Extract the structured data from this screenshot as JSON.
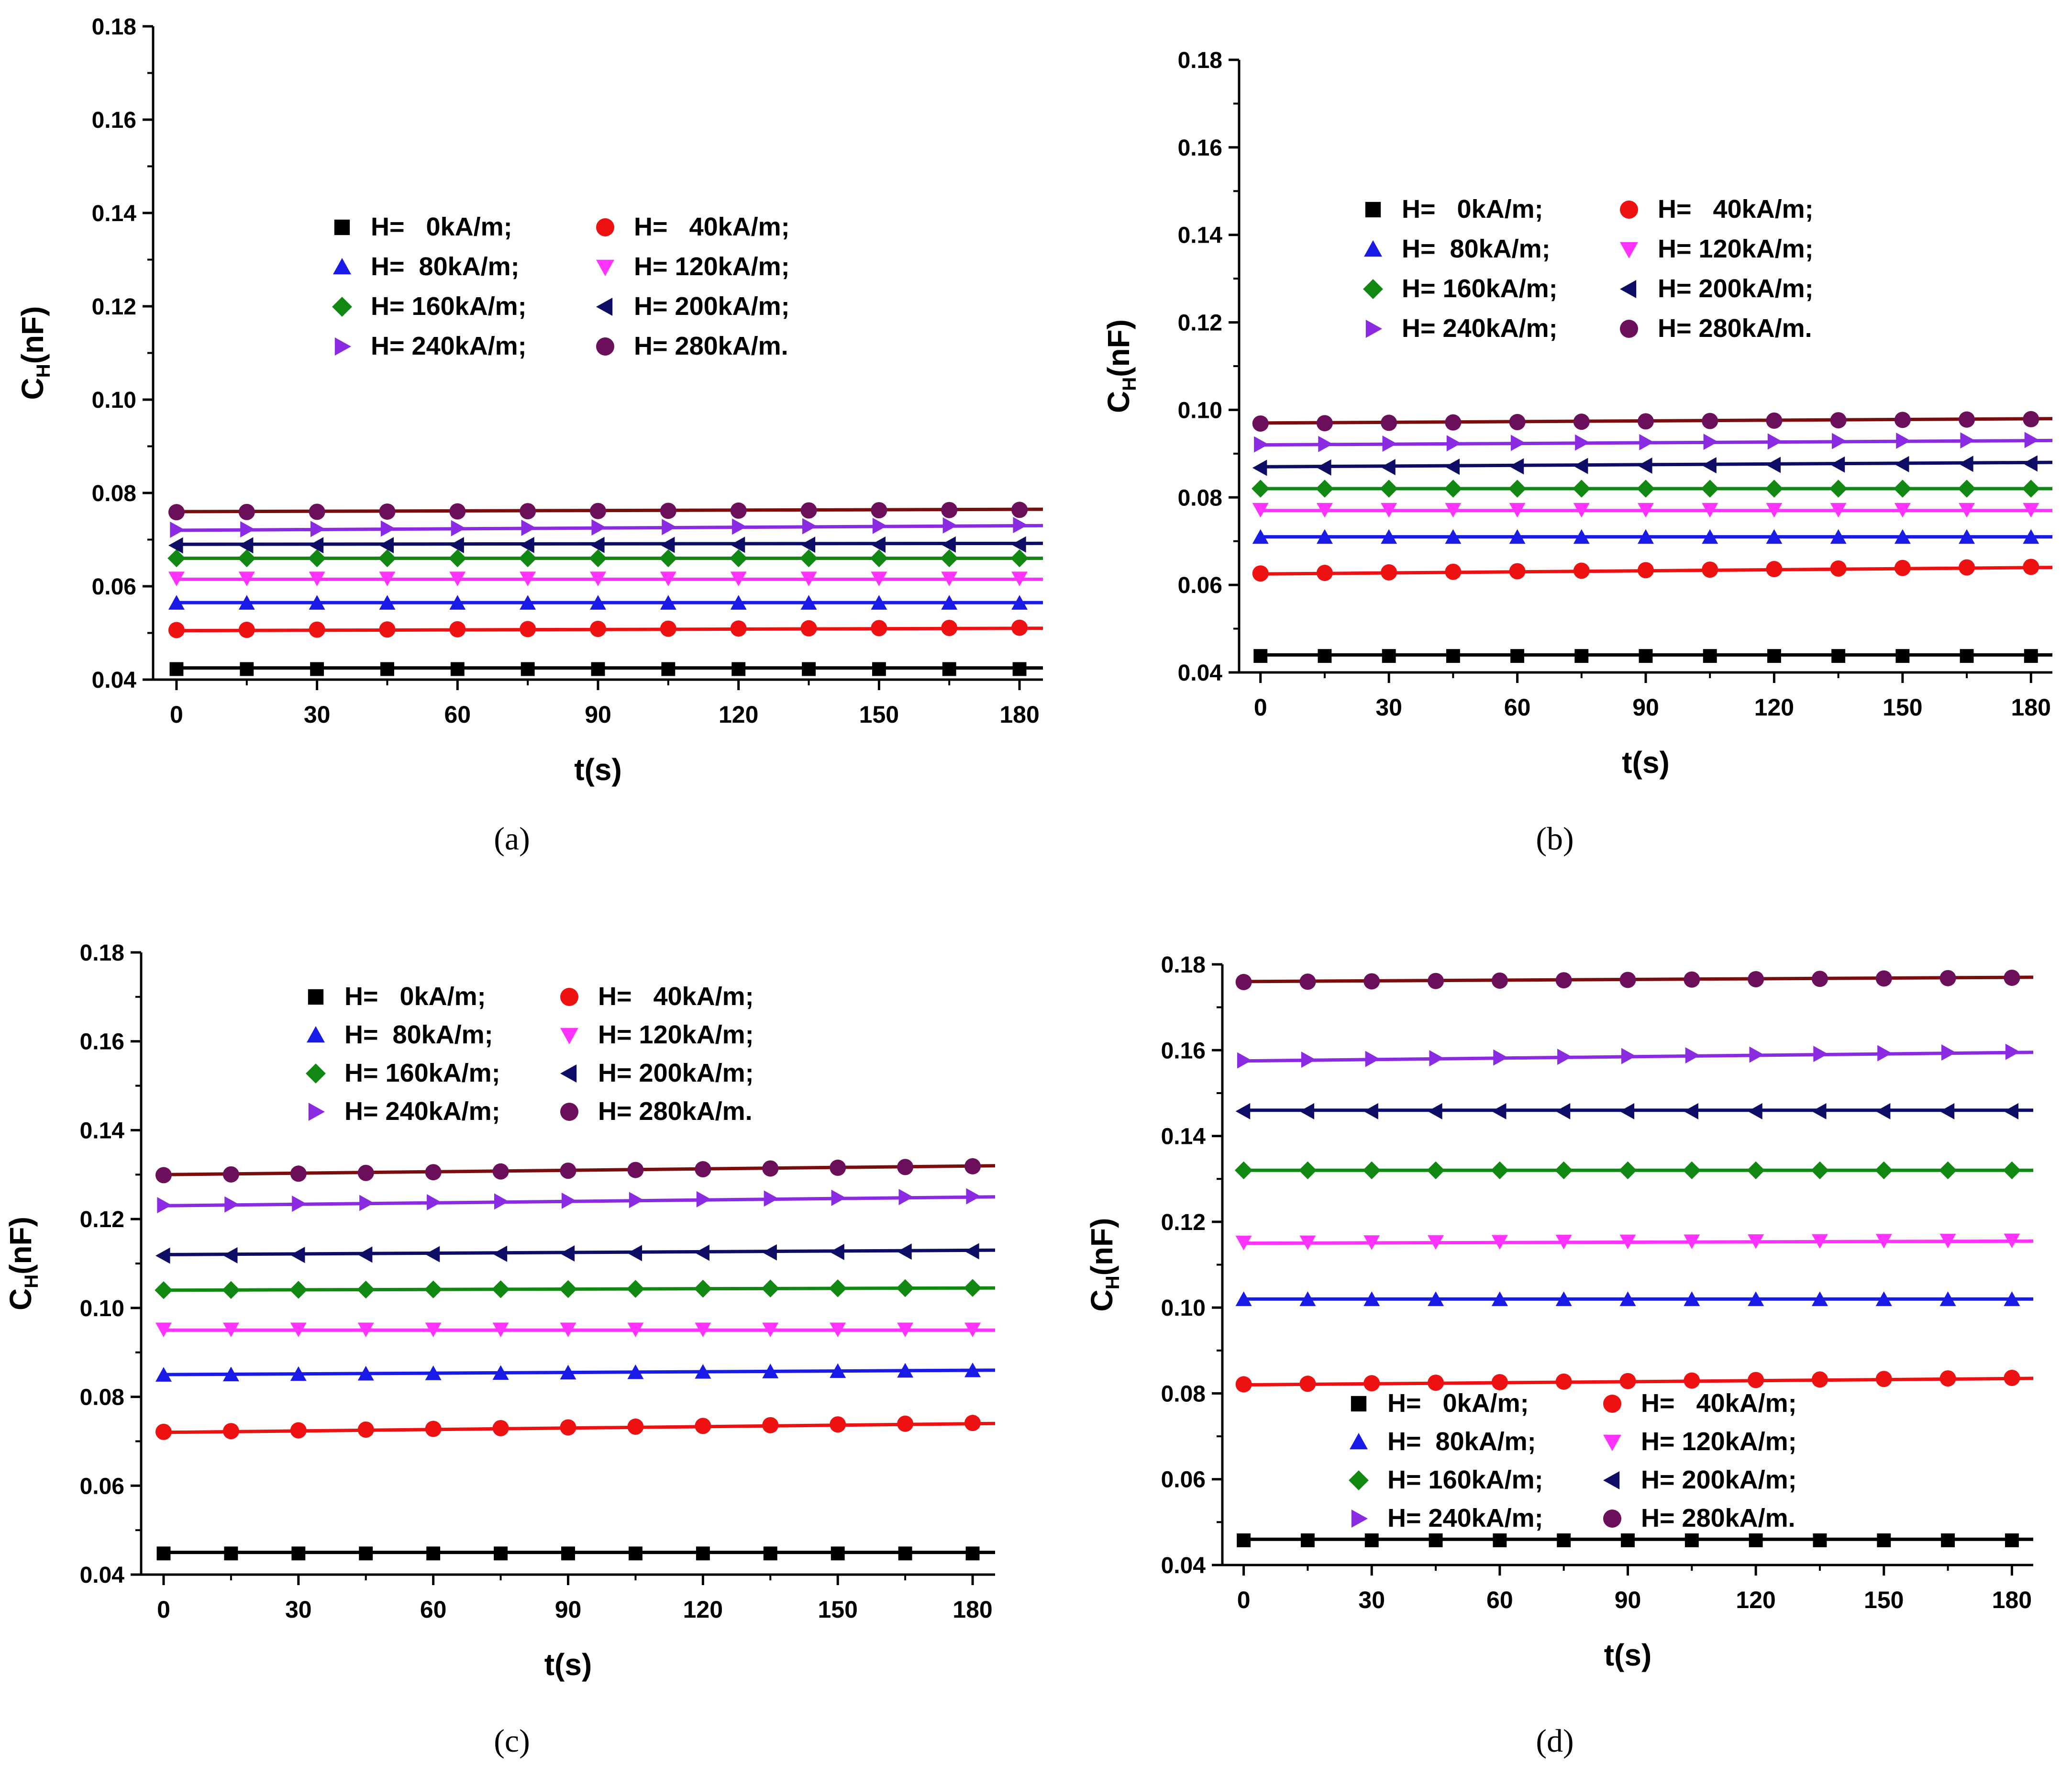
{
  "figure": {
    "legend_labels": [
      "H=   0kA/m;",
      "H=   40kA/m;",
      "H=  80kA/m;",
      "H= 120kA/m;",
      "H= 160kA/m;",
      "H= 200kA/m;",
      "H= 240kA/m;",
      "H= 280kA/m."
    ],
    "series_colors": [
      "#000000",
      "#ee1111",
      "#1a1ae6",
      "#ff33ff",
      "#118811",
      "#0d0d66",
      "#8a2be2",
      "#6b0f5a"
    ],
    "series_line_colors": [
      "#000000",
      "#ee1111",
      "#1a1ae6",
      "#ff33ff",
      "#118811",
      "#0d0d66",
      "#8a2be2",
      "#7a0e0e"
    ],
    "marker_shapes": [
      "square-icon",
      "circle-icon",
      "triangle-up-icon",
      "triangle-down-icon",
      "diamond-icon",
      "triangle-left-icon",
      "triangle-right-icon",
      "circle-icon"
    ]
  },
  "chart_data": [
    {
      "id": "a",
      "type": "scatter",
      "caption": "(a)",
      "xlabel": "t(s)",
      "ylabel_main": "C",
      "ylabel_sub": "H",
      "ylabel_unit": "(nF)",
      "xlim": [
        -5,
        185
      ],
      "ylim": [
        0.04,
        0.18
      ],
      "xticks": [
        "0",
        "30",
        "60",
        "90",
        "120",
        "150",
        "180"
      ],
      "yticks": [
        "0.04",
        "0.06",
        "0.08",
        "0.10",
        "0.12",
        "0.14",
        "0.16",
        "0.18"
      ],
      "legend_position": "top-center",
      "x": [
        0,
        15,
        30,
        45,
        60,
        75,
        90,
        105,
        120,
        135,
        150,
        165,
        180
      ],
      "series": [
        {
          "name": "H=   0kA/m;",
          "start": 0.0425,
          "end": 0.0425
        },
        {
          "name": "H=   40kA/m;",
          "start": 0.0505,
          "end": 0.051
        },
        {
          "name": "H=  80kA/m;",
          "start": 0.0565,
          "end": 0.0565
        },
        {
          "name": "H= 120kA/m;",
          "start": 0.0615,
          "end": 0.0615
        },
        {
          "name": "H= 160kA/m;",
          "start": 0.066,
          "end": 0.066
        },
        {
          "name": "H= 200kA/m;",
          "start": 0.069,
          "end": 0.0692
        },
        {
          "name": "H= 240kA/m;",
          "start": 0.072,
          "end": 0.073
        },
        {
          "name": "H= 280kA/m.",
          "start": 0.076,
          "end": 0.0765
        }
      ]
    },
    {
      "id": "b",
      "type": "scatter",
      "caption": "(b)",
      "xlabel": "t(s)",
      "ylabel_main": "C",
      "ylabel_sub": "H",
      "ylabel_unit": "(nF)",
      "xlim": [
        -5,
        185
      ],
      "ylim": [
        0.04,
        0.18
      ],
      "xticks": [
        "0",
        "30",
        "60",
        "90",
        "120",
        "150",
        "180"
      ],
      "yticks": [
        "0.04",
        "0.06",
        "0.08",
        "0.10",
        "0.12",
        "0.14",
        "0.16",
        "0.18"
      ],
      "legend_position": "top-center",
      "x": [
        0,
        15,
        30,
        45,
        60,
        75,
        90,
        105,
        120,
        135,
        150,
        165,
        180
      ],
      "series": [
        {
          "name": "H=   0kA/m;",
          "start": 0.044,
          "end": 0.044
        },
        {
          "name": "H=   40kA/m;",
          "start": 0.0625,
          "end": 0.064
        },
        {
          "name": "H=  80kA/m;",
          "start": 0.071,
          "end": 0.071
        },
        {
          "name": "H= 120kA/m;",
          "start": 0.077,
          "end": 0.077
        },
        {
          "name": "H= 160kA/m;",
          "start": 0.082,
          "end": 0.082
        },
        {
          "name": "H= 200kA/m;",
          "start": 0.087,
          "end": 0.088
        },
        {
          "name": "H= 240kA/m;",
          "start": 0.092,
          "end": 0.093
        },
        {
          "name": "H= 280kA/m.",
          "start": 0.097,
          "end": 0.098
        }
      ]
    },
    {
      "id": "c",
      "type": "scatter",
      "caption": "(c)",
      "xlabel": "t(s)",
      "ylabel_main": "C",
      "ylabel_sub": "H",
      "ylabel_unit": "(nF)",
      "xlim": [
        -5,
        185
      ],
      "ylim": [
        0.04,
        0.18
      ],
      "xticks": [
        "0",
        "30",
        "60",
        "90",
        "120",
        "150",
        "180"
      ],
      "yticks": [
        "0.04",
        "0.06",
        "0.08",
        "0.10",
        "0.12",
        "0.14",
        "0.16",
        "0.18"
      ],
      "legend_position": "top-center",
      "x": [
        0,
        15,
        30,
        45,
        60,
        75,
        90,
        105,
        120,
        135,
        150,
        165,
        180
      ],
      "series": [
        {
          "name": "H=   0kA/m;",
          "start": 0.045,
          "end": 0.045
        },
        {
          "name": "H=   40kA/m;",
          "start": 0.072,
          "end": 0.074
        },
        {
          "name": "H=  80kA/m;",
          "start": 0.085,
          "end": 0.086
        },
        {
          "name": "H= 120kA/m;",
          "start": 0.095,
          "end": 0.095
        },
        {
          "name": "H= 160kA/m;",
          "start": 0.104,
          "end": 0.1045
        },
        {
          "name": "H= 200kA/m;",
          "start": 0.112,
          "end": 0.113
        },
        {
          "name": "H= 240kA/m;",
          "start": 0.123,
          "end": 0.125
        },
        {
          "name": "H= 280kA/m.",
          "start": 0.13,
          "end": 0.132
        }
      ]
    },
    {
      "id": "d",
      "type": "scatter",
      "caption": "(d)",
      "xlabel": "t(s)",
      "ylabel_main": "C",
      "ylabel_sub": "H",
      "ylabel_unit": "(nF)",
      "xlim": [
        -5,
        185
      ],
      "ylim": [
        0.04,
        0.18
      ],
      "xticks": [
        "0",
        "30",
        "60",
        "90",
        "120",
        "150",
        "180"
      ],
      "yticks": [
        "0.04",
        "0.06",
        "0.08",
        "0.10",
        "0.12",
        "0.14",
        "0.16",
        "0.18"
      ],
      "legend_position": "bottom-center",
      "x": [
        0,
        15,
        30,
        45,
        60,
        75,
        90,
        105,
        120,
        135,
        150,
        165,
        180
      ],
      "series": [
        {
          "name": "H=   0kA/m;",
          "start": 0.046,
          "end": 0.046
        },
        {
          "name": "H=   40kA/m;",
          "start": 0.082,
          "end": 0.0835
        },
        {
          "name": "H=  80kA/m;",
          "start": 0.102,
          "end": 0.102
        },
        {
          "name": "H= 120kA/m;",
          "start": 0.115,
          "end": 0.1155
        },
        {
          "name": "H= 160kA/m;",
          "start": 0.132,
          "end": 0.132
        },
        {
          "name": "H= 200kA/m;",
          "start": 0.146,
          "end": 0.146
        },
        {
          "name": "H= 240kA/m;",
          "start": 0.1575,
          "end": 0.1595
        },
        {
          "name": "H= 280kA/m.",
          "start": 0.176,
          "end": 0.177
        }
      ]
    }
  ]
}
